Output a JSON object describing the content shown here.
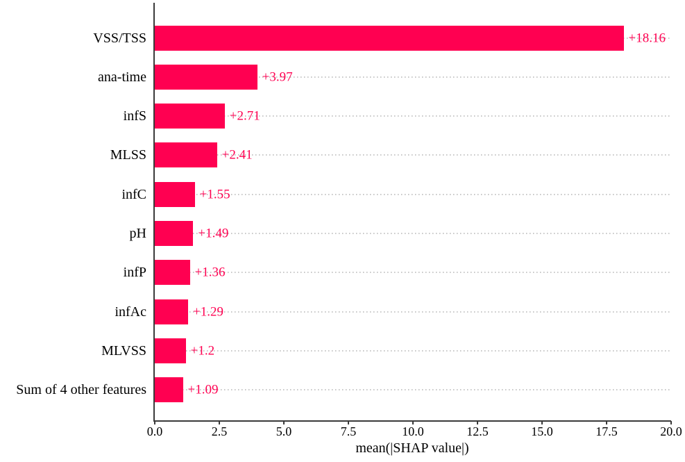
{
  "chart_data": {
    "type": "bar",
    "orientation": "horizontal",
    "title": "",
    "categories": [
      "VSS/TSS",
      "ana-time",
      "infS",
      "MLSS",
      "infC",
      "pH",
      "infP",
      "infAc",
      "MLVSS",
      "Sum of 4 other features"
    ],
    "values": [
      18.16,
      3.97,
      2.71,
      2.41,
      1.55,
      1.49,
      1.36,
      1.29,
      1.2,
      1.09
    ],
    "value_labels": [
      "+18.16",
      "+3.97",
      "+2.71",
      "+2.41",
      "+1.55",
      "+1.49",
      "+1.36",
      "+1.29",
      "+1.2",
      "+1.09"
    ],
    "xlabel": "mean(|SHAP value|)",
    "ylabel": "",
    "xlim": [
      0,
      20
    ],
    "x_ticks": [
      0,
      2.5,
      5,
      7.5,
      10,
      12.5,
      15,
      17.5,
      20
    ],
    "x_tick_labels": [
      "0.0",
      "2.5",
      "5.0",
      "7.5",
      "10.0",
      "12.5",
      "15.0",
      "17.5",
      "20.0"
    ],
    "grid": "horizontal-dotted",
    "legend": "none",
    "colors": {
      "bar": "#ff0051",
      "value_label": "#ff0051",
      "gridline": "#c6c6c6",
      "spine": "#3a3a3a",
      "text": "#000000",
      "background": "#ffffff"
    }
  }
}
